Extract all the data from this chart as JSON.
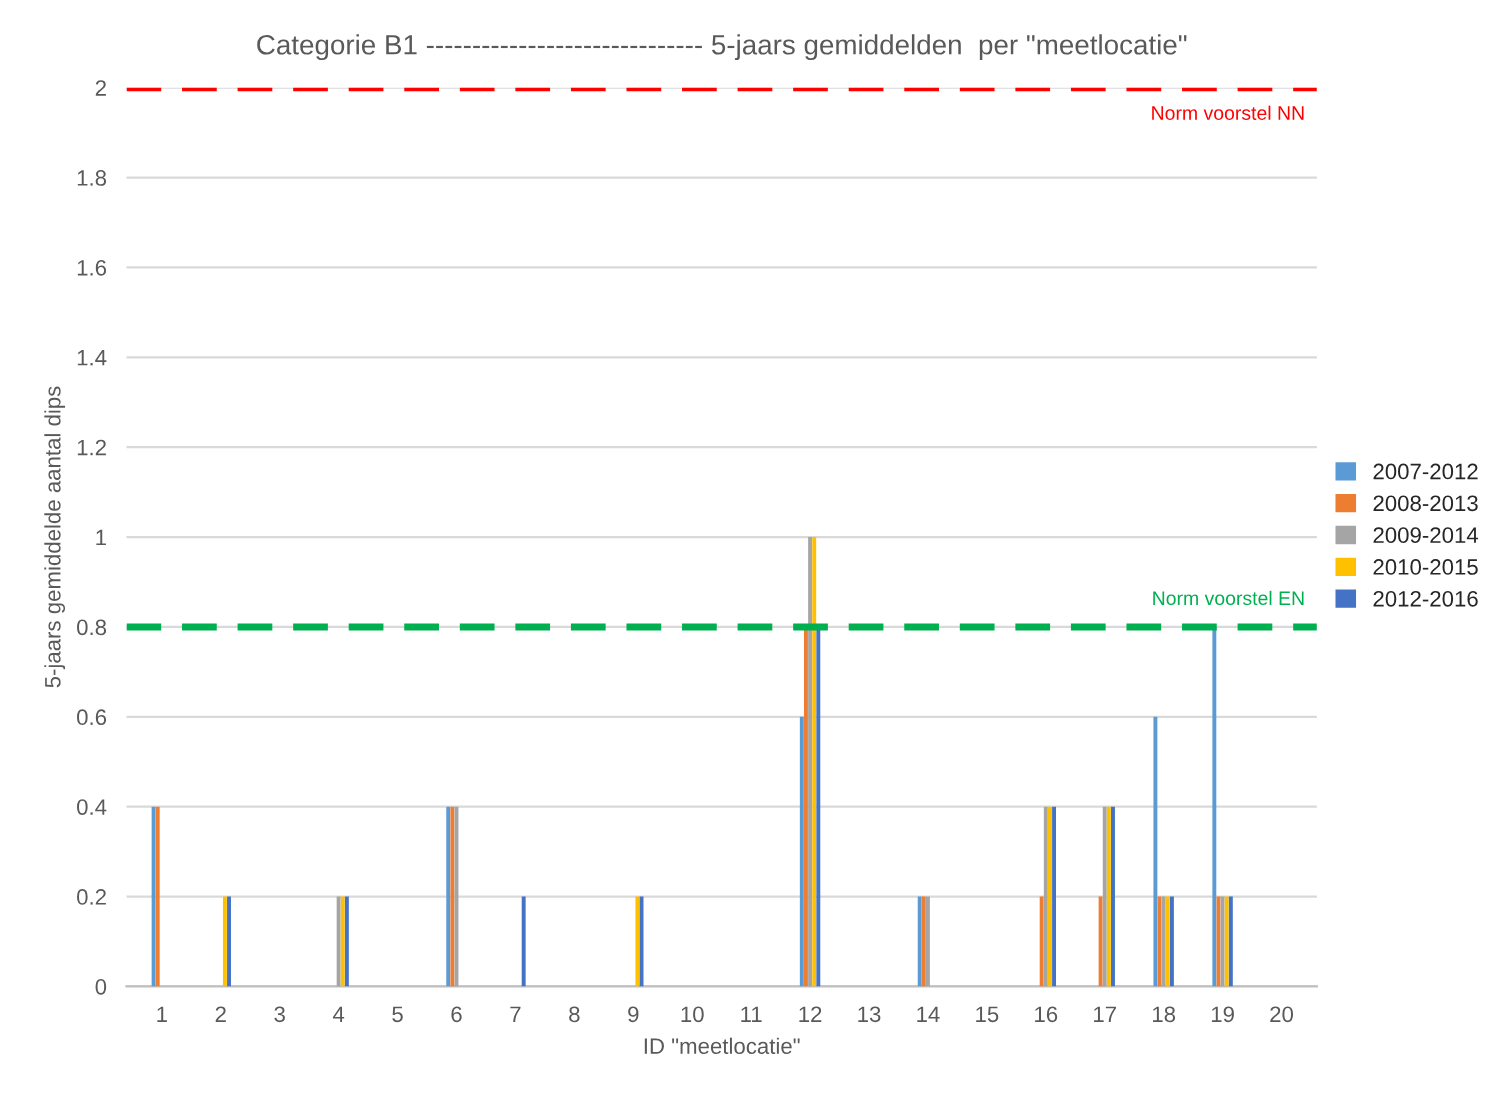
{
  "chart_data": {
    "type": "bar",
    "title": "Categorie B1 ------------------------------ 5-jaars gemiddelden  per \"meetlocatie\"",
    "xlabel": "ID \"meetlocatie\"",
    "ylabel": "5-jaars gemiddelde aantal dips",
    "categories": [
      "1",
      "2",
      "3",
      "4",
      "5",
      "6",
      "7",
      "8",
      "9",
      "10",
      "11",
      "12",
      "13",
      "14",
      "15",
      "16",
      "17",
      "18",
      "19",
      "20"
    ],
    "series": [
      {
        "name": "2007-2012",
        "color": "#5b9bd5",
        "values": [
          0.4,
          0,
          0,
          0,
          0,
          0.4,
          0,
          0,
          0,
          0,
          0,
          0.6,
          0,
          0.2,
          0,
          0,
          0,
          0.6,
          0.8,
          0
        ]
      },
      {
        "name": "2008-2013",
        "color": "#ed7d31",
        "values": [
          0.4,
          0,
          0,
          0,
          0,
          0.4,
          0,
          0,
          0,
          0,
          0,
          0.8,
          0,
          0.2,
          0,
          0.2,
          0.2,
          0.2,
          0.2,
          0
        ]
      },
      {
        "name": "2009-2014",
        "color": "#a5a5a5",
        "values": [
          0,
          0,
          0,
          0.2,
          0,
          0.4,
          0,
          0,
          0,
          0,
          0,
          1,
          0,
          0.2,
          0,
          0.4,
          0.4,
          0.2,
          0.2,
          0
        ]
      },
      {
        "name": "2010-2015",
        "color": "#ffc000",
        "values": [
          0,
          0.2,
          0,
          0.2,
          0,
          0,
          0,
          0,
          0.2,
          0,
          0,
          1,
          0,
          0,
          0,
          0.4,
          0.4,
          0.2,
          0.2,
          0
        ]
      },
      {
        "name": "2012-2016",
        "color": "#4472c4",
        "values": [
          0,
          0.2,
          0,
          0.2,
          0,
          0,
          0.2,
          0,
          0.2,
          0,
          0,
          0.8,
          0,
          0,
          0,
          0.4,
          0.4,
          0.2,
          0.2,
          0
        ]
      }
    ],
    "ylim": [
      0,
      2
    ],
    "yticks": [
      0,
      0.2,
      0.4,
      0.6,
      0.8,
      1,
      1.2,
      1.4,
      1.6,
      1.8,
      2
    ],
    "grid": "y",
    "legend": "right",
    "ref_lines": [
      {
        "axis": "y",
        "value": 2,
        "label": "Norm voorstel NN",
        "color": "#ff0000",
        "line_style": "dashed"
      },
      {
        "axis": "y",
        "value": 0.8,
        "label": "Norm voorstel EN",
        "color": "#00b050",
        "line_style": "dashed"
      }
    ]
  }
}
